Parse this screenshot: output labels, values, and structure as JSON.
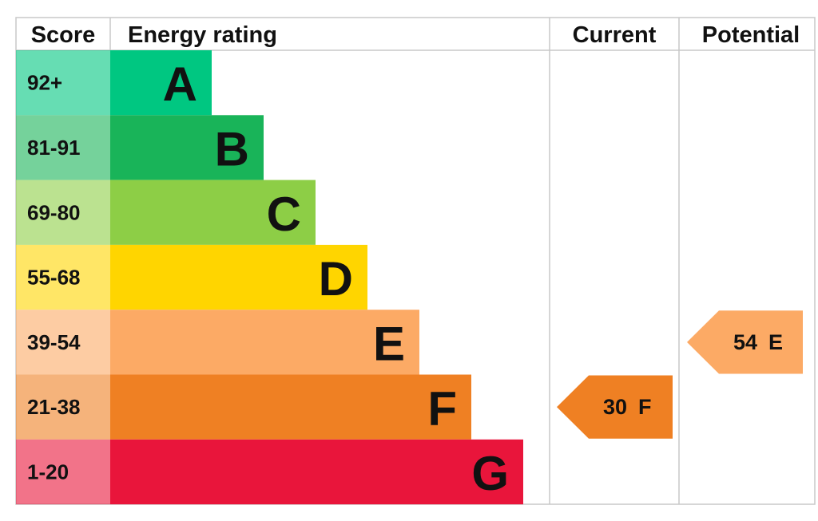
{
  "header": {
    "score": "Score",
    "energy_rating": "Energy rating",
    "current": "Current",
    "potential": "Potential"
  },
  "rows": [
    {
      "score": "92+",
      "band": "A",
      "color": "#00c781"
    },
    {
      "score": "81-91",
      "band": "B",
      "color": "#19b459"
    },
    {
      "score": "69-80",
      "band": "C",
      "color": "#8dce46"
    },
    {
      "score": "55-68",
      "band": "D",
      "color": "#ffd500"
    },
    {
      "score": "39-54",
      "band": "E",
      "color": "#fcaa65"
    },
    {
      "score": "21-38",
      "band": "F",
      "color": "#ef8023"
    },
    {
      "score": "1-20",
      "band": "G",
      "color": "#e9153b"
    }
  ],
  "current": {
    "score": 30,
    "band": "F"
  },
  "potential": {
    "score": 54,
    "band": "E"
  }
}
